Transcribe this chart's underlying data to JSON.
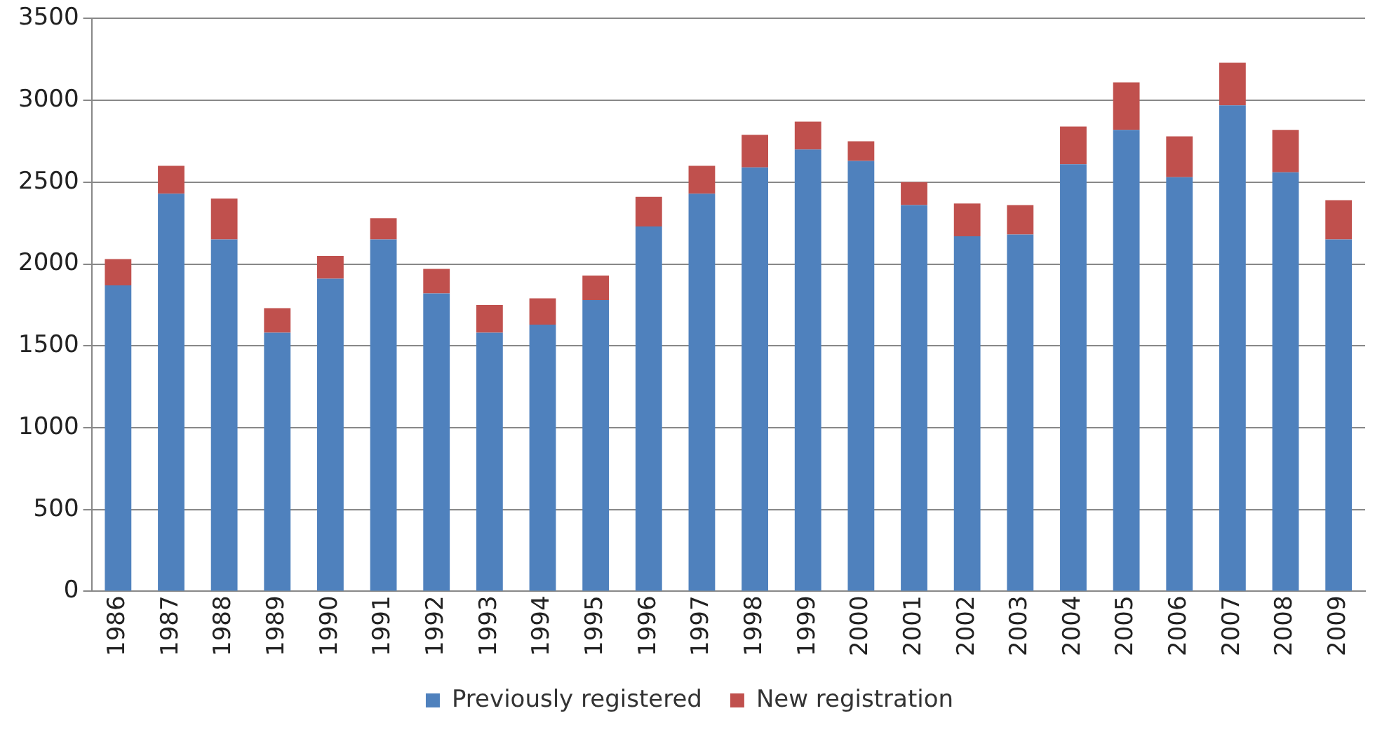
{
  "chart_data": {
    "type": "bar",
    "stacked": true,
    "categories": [
      "1986",
      "1987",
      "1988",
      "1989",
      "1990",
      "1991",
      "1992",
      "1993",
      "1994",
      "1995",
      "1996",
      "1997",
      "1998",
      "1999",
      "2000",
      "2001",
      "2002",
      "2003",
      "2004",
      "2005",
      "2006",
      "2007",
      "2008",
      "2009"
    ],
    "series": [
      {
        "name": "Previously registered",
        "color": "#4f81bd",
        "values": [
          1870,
          2430,
          2150,
          1580,
          1910,
          2150,
          1820,
          1580,
          1630,
          1780,
          2230,
          2430,
          2590,
          2700,
          2630,
          2360,
          2170,
          2180,
          2610,
          2820,
          2530,
          2970,
          2560,
          2150
        ]
      },
      {
        "name": "New registration",
        "color": "#c0504d",
        "values": [
          160,
          170,
          250,
          150,
          140,
          130,
          150,
          170,
          160,
          150,
          180,
          170,
          200,
          170,
          120,
          140,
          200,
          180,
          230,
          290,
          250,
          260,
          260,
          240
        ]
      }
    ],
    "ylim": [
      0,
      3500
    ],
    "yticks": [
      0,
      500,
      1000,
      1500,
      2000,
      2500,
      3000,
      3500
    ],
    "grid": "y",
    "legend": "bottom"
  }
}
